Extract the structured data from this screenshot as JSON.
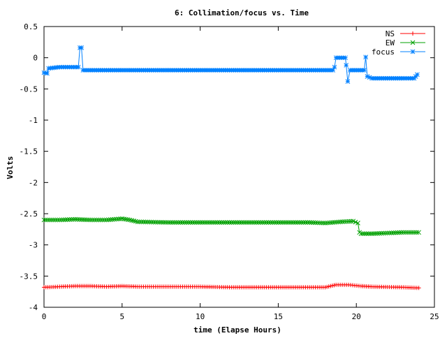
{
  "chart_data": {
    "type": "line",
    "title": "6: Collimation/focus vs. Time",
    "xlabel": "time (Elapse Hours)",
    "ylabel": "Volts",
    "xlim": [
      0,
      25
    ],
    "ylim": [
      -4,
      0.5
    ],
    "x_ticks": [
      0,
      5,
      10,
      15,
      20,
      25
    ],
    "x_tick_labels": [
      "0",
      "5",
      "10",
      "15",
      "20",
      "25"
    ],
    "y_ticks": [
      0.5,
      0,
      -0.5,
      -1,
      -1.5,
      -2,
      -2.5,
      -3,
      -3.5,
      -4
    ],
    "y_tick_labels": [
      "0.5",
      "0",
      "-0.5",
      "-1",
      "-1.5",
      "-2",
      "-2.5",
      "-3",
      "-3.5",
      "-4"
    ],
    "grid": false,
    "legend_position": "top-right",
    "series": [
      {
        "name": "NS",
        "color": "#ff0000",
        "marker": "plus",
        "points": [
          [
            0,
            -3.68
          ],
          [
            1,
            -3.67
          ],
          [
            2,
            -3.66
          ],
          [
            3,
            -3.66
          ],
          [
            4,
            -3.67
          ],
          [
            5,
            -3.66
          ],
          [
            6,
            -3.67
          ],
          [
            8,
            -3.67
          ],
          [
            10,
            -3.67
          ],
          [
            12,
            -3.68
          ],
          [
            14,
            -3.68
          ],
          [
            16,
            -3.68
          ],
          [
            18,
            -3.68
          ],
          [
            18.7,
            -3.64
          ],
          [
            19.5,
            -3.64
          ],
          [
            20.3,
            -3.66
          ],
          [
            21,
            -3.67
          ],
          [
            23,
            -3.68
          ],
          [
            24,
            -3.69
          ]
        ]
      },
      {
        "name": "EW",
        "color": "#00a000",
        "marker": "x",
        "points": [
          [
            0,
            -2.6
          ],
          [
            1,
            -2.6
          ],
          [
            2,
            -2.59
          ],
          [
            3,
            -2.6
          ],
          [
            4,
            -2.6
          ],
          [
            5,
            -2.58
          ],
          [
            5.5,
            -2.6
          ],
          [
            6,
            -2.63
          ],
          [
            8,
            -2.64
          ],
          [
            10,
            -2.64
          ],
          [
            12,
            -2.64
          ],
          [
            14,
            -2.64
          ],
          [
            16,
            -2.64
          ],
          [
            17,
            -2.64
          ],
          [
            18,
            -2.65
          ],
          [
            19,
            -2.63
          ],
          [
            19.8,
            -2.62
          ],
          [
            20.1,
            -2.65
          ],
          [
            20.2,
            -2.8
          ],
          [
            20.3,
            -2.82
          ],
          [
            21,
            -2.82
          ],
          [
            22,
            -2.81
          ],
          [
            23,
            -2.8
          ],
          [
            24,
            -2.8
          ]
        ]
      },
      {
        "name": "focus",
        "color": "#0080ff",
        "marker": "star",
        "points": [
          [
            0,
            -0.24
          ],
          [
            0.2,
            -0.25
          ],
          [
            0.3,
            -0.17
          ],
          [
            1,
            -0.15
          ],
          [
            2,
            -0.15
          ],
          [
            2.2,
            -0.15
          ],
          [
            2.3,
            0.16
          ],
          [
            2.4,
            0.16
          ],
          [
            2.5,
            -0.2
          ],
          [
            5,
            -0.2
          ],
          [
            10,
            -0.2
          ],
          [
            15,
            -0.2
          ],
          [
            18.5,
            -0.2
          ],
          [
            18.6,
            -0.15
          ],
          [
            18.7,
            0
          ],
          [
            19.3,
            0
          ],
          [
            19.35,
            -0.12
          ],
          [
            19.45,
            -0.38
          ],
          [
            19.6,
            -0.2
          ],
          [
            20.5,
            -0.2
          ],
          [
            20.6,
            0.01
          ],
          [
            20.7,
            -0.3
          ],
          [
            21,
            -0.33
          ],
          [
            22,
            -0.33
          ],
          [
            23,
            -0.33
          ],
          [
            23.7,
            -0.33
          ],
          [
            23.9,
            -0.27
          ]
        ]
      }
    ]
  }
}
